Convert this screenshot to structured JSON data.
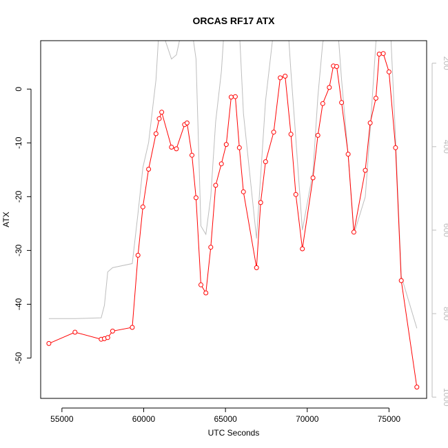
{
  "chart_data": {
    "type": "line",
    "title": "ORCAS RF17 ATX",
    "xlabel": "UTC Seconds",
    "ylabel": "ATX",
    "xlim": [
      53700,
      77300
    ],
    "ylim": [
      -57.5,
      9
    ],
    "x_ticks": [
      55000,
      60000,
      65000,
      70000,
      75000
    ],
    "y_ticks": [
      0,
      -10,
      -20,
      -30,
      -40,
      -50
    ],
    "y2_ticks": [
      200,
      400,
      600,
      800,
      1000
    ],
    "y2lim": [
      146,
      1003
    ],
    "series": [
      {
        "color": "#ff0000",
        "style": "line+points",
        "axis": "left",
        "x": [
          54200,
          55800,
          57400,
          57600,
          57800,
          58100,
          59300,
          59650,
          59950,
          60300,
          60750,
          60950,
          61100,
          61700,
          62000,
          62500,
          62650,
          62950,
          63200,
          63500,
          63800,
          64100,
          64400,
          64750,
          65050,
          65350,
          65600,
          65850,
          66100,
          66900,
          67150,
          67450,
          67950,
          68350,
          68650,
          69000,
          69300,
          69700,
          70350,
          70650,
          70950,
          71350,
          71600,
          71800,
          72100,
          72500,
          72850,
          73550,
          73850,
          74200,
          74400,
          74650,
          75000,
          75400,
          75750,
          76700
        ],
        "y": [
          -47.3,
          -45.2,
          -46.5,
          -46.4,
          -46.2,
          -45.0,
          -44.3,
          -30.9,
          -21.9,
          -14.9,
          -8.3,
          -5.5,
          -4.3,
          -10.8,
          -11.1,
          -6.6,
          -6.3,
          -12.3,
          -20.2,
          -36.4,
          -37.9,
          -29.4,
          -17.9,
          -13.9,
          -10.3,
          -1.5,
          -1.4,
          -10.9,
          -19.1,
          -33.2,
          -21.1,
          -13.5,
          -8.0,
          2.1,
          2.4,
          -8.4,
          -19.6,
          -29.7,
          -16.5,
          -8.6,
          -2.7,
          0.3,
          4.3,
          4.2,
          -2.5,
          -12.1,
          -26.6,
          -15.1,
          -6.3,
          -1.7,
          6.5,
          6.6,
          3.2,
          -10.9,
          -35.6,
          -55.4
        ]
      },
      {
        "color": "#bdbdbd",
        "style": "line",
        "axis": "right",
        "x": [
          54200,
          55800,
          57400,
          57600,
          57800,
          58100,
          59300,
          59650,
          59950,
          60300,
          60750,
          60950,
          61100,
          61700,
          62000,
          62500,
          62650,
          62950,
          63200,
          63500,
          63800,
          64100,
          64400,
          64750,
          65050,
          65350,
          65600,
          65850,
          66100,
          66900,
          67150,
          67450,
          67950,
          68350,
          68650,
          69000,
          69300,
          69700,
          70350,
          70650,
          70950,
          71350,
          71600,
          71800,
          72100,
          72500,
          72850,
          73550,
          73850,
          74200,
          74400,
          74650,
          75000,
          75400,
          75750,
          76700
        ],
        "y": [
          812,
          812,
          810,
          780,
          700,
          690,
          680,
          560,
          450,
          390,
          240,
          110,
          120,
          190,
          180,
          90,
          10,
          120,
          190,
          590,
          610,
          520,
          340,
          220,
          40,
          -60,
          50,
          120,
          320,
          620,
          470,
          290,
          120,
          20,
          10,
          220,
          380,
          600,
          460,
          280,
          150,
          110,
          20,
          80,
          240,
          420,
          610,
          520,
          360,
          150,
          70,
          20,
          40,
          380,
          710,
          835
        ]
      }
    ]
  }
}
